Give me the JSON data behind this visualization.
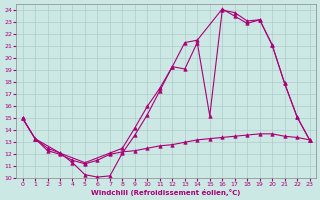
{
  "xlabel": "Windchill (Refroidissement éolien,°C)",
  "bg_color": "#cce8e4",
  "grid_color": "#b0ccc8",
  "line_color": "#aa0077",
  "xlim": [
    -0.5,
    23.5
  ],
  "ylim": [
    10,
    24.5
  ],
  "xticks": [
    0,
    1,
    2,
    3,
    4,
    5,
    6,
    7,
    8,
    9,
    10,
    11,
    12,
    13,
    14,
    15,
    16,
    17,
    18,
    19,
    20,
    21,
    22,
    23
  ],
  "yticks": [
    10,
    11,
    12,
    13,
    14,
    15,
    16,
    17,
    18,
    19,
    20,
    21,
    22,
    23,
    24
  ],
  "s1_x": [
    0,
    1,
    2,
    3,
    4,
    5,
    6,
    7,
    8,
    9,
    10,
    11,
    12,
    13,
    14,
    15,
    16,
    17,
    18,
    19,
    20,
    21,
    22,
    23
  ],
  "s1_y": [
    15.0,
    13.3,
    12.5,
    12.1,
    11.3,
    10.3,
    10.1,
    10.2,
    12.1,
    13.6,
    15.3,
    17.3,
    19.3,
    19.1,
    21.3,
    15.2,
    24.0,
    23.8,
    23.1,
    23.2,
    21.1,
    17.9,
    15.1,
    13.2
  ],
  "s2_x": [
    0,
    1,
    3,
    5,
    7,
    8,
    9,
    10,
    11,
    12,
    13,
    14,
    16,
    17,
    18,
    19,
    20,
    21,
    22,
    23
  ],
  "s2_y": [
    15.0,
    13.3,
    12.1,
    11.3,
    12.1,
    12.5,
    14.2,
    16.0,
    17.5,
    19.3,
    21.3,
    21.5,
    24.1,
    23.5,
    22.9,
    23.2,
    21.1,
    17.9,
    15.1,
    13.2
  ],
  "s3_x": [
    0,
    1,
    2,
    3,
    4,
    5,
    6,
    7,
    8,
    9,
    10,
    11,
    12,
    13,
    14,
    15,
    16,
    17,
    18,
    19,
    20,
    21,
    22,
    23
  ],
  "s3_y": [
    15.0,
    13.3,
    12.3,
    12.0,
    11.5,
    11.2,
    11.5,
    12.0,
    12.2,
    12.3,
    12.5,
    12.7,
    12.8,
    13.0,
    13.2,
    13.3,
    13.4,
    13.5,
    13.6,
    13.7,
    13.7,
    13.5,
    13.4,
    13.2
  ]
}
